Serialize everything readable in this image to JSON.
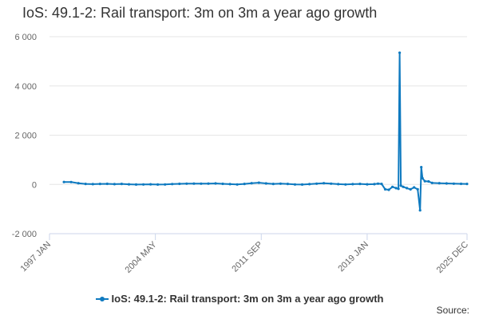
{
  "chart_data": {
    "type": "line",
    "title": "IoS: 49.1-2: Rail transport: 3m on 3m a year ago growth",
    "xlabel": "",
    "ylabel": "",
    "ylim": [
      -2000,
      6000
    ],
    "yticks": [
      {
        "value": -2000,
        "label": "-2 000"
      },
      {
        "value": 0,
        "label": "0"
      },
      {
        "value": 2000,
        "label": "2 000"
      },
      {
        "value": 4000,
        "label": "4 000"
      },
      {
        "value": 6000,
        "label": "6 000"
      }
    ],
    "xrange": [
      "1997-01",
      "2025-12"
    ],
    "xticks": [
      {
        "value": "1997-01",
        "label": "1997 JAN"
      },
      {
        "value": "2004-05",
        "label": "2004 MAY"
      },
      {
        "value": "2011-09",
        "label": "2011 SEP"
      },
      {
        "value": "2019-01",
        "label": "2019 JAN"
      },
      {
        "value": "2025-12",
        "label": "2025 DEC"
      }
    ],
    "grid": "horizontal",
    "legend_position": "bottom",
    "color": "#0f7ac0",
    "series": [
      {
        "name": "IoS: 49.1-2: Rail transport: 3m on 3m a year ago growth",
        "points": [
          [
            "1998-01",
            100
          ],
          [
            "1998-07",
            95
          ],
          [
            "1999-01",
            50
          ],
          [
            "1999-07",
            20
          ],
          [
            "2000-01",
            10
          ],
          [
            "2000-07",
            20
          ],
          [
            "2001-01",
            25
          ],
          [
            "2001-07",
            10
          ],
          [
            "2002-01",
            20
          ],
          [
            "2002-07",
            5
          ],
          [
            "2003-01",
            -5
          ],
          [
            "2003-07",
            0
          ],
          [
            "2004-01",
            5
          ],
          [
            "2004-07",
            -5
          ],
          [
            "2005-01",
            0
          ],
          [
            "2005-07",
            15
          ],
          [
            "2006-01",
            25
          ],
          [
            "2006-07",
            30
          ],
          [
            "2007-01",
            35
          ],
          [
            "2007-07",
            30
          ],
          [
            "2008-01",
            35
          ],
          [
            "2008-07",
            40
          ],
          [
            "2009-01",
            25
          ],
          [
            "2009-07",
            10
          ],
          [
            "2010-01",
            0
          ],
          [
            "2010-07",
            20
          ],
          [
            "2011-01",
            50
          ],
          [
            "2011-07",
            70
          ],
          [
            "2012-01",
            40
          ],
          [
            "2012-07",
            20
          ],
          [
            "2013-01",
            30
          ],
          [
            "2013-07",
            20
          ],
          [
            "2014-01",
            0
          ],
          [
            "2014-07",
            -5
          ],
          [
            "2015-01",
            10
          ],
          [
            "2015-07",
            30
          ],
          [
            "2016-01",
            50
          ],
          [
            "2016-07",
            30
          ],
          [
            "2017-01",
            10
          ],
          [
            "2017-07",
            0
          ],
          [
            "2018-01",
            10
          ],
          [
            "2018-07",
            20
          ],
          [
            "2019-01",
            5
          ],
          [
            "2019-07",
            10
          ],
          [
            "2019-10",
            30
          ],
          [
            "2020-01",
            20
          ],
          [
            "2020-04",
            -200
          ],
          [
            "2020-07",
            -220
          ],
          [
            "2020-10",
            -100
          ],
          [
            "2021-01",
            -150
          ],
          [
            "2021-03",
            -180
          ],
          [
            "2021-04",
            5350
          ],
          [
            "2021-05",
            -50
          ],
          [
            "2021-07",
            -100
          ],
          [
            "2021-10",
            -150
          ],
          [
            "2022-01",
            -200
          ],
          [
            "2022-04",
            -120
          ],
          [
            "2022-07",
            -200
          ],
          [
            "2022-09",
            -1050
          ],
          [
            "2022-10",
            700
          ],
          [
            "2022-11",
            250
          ],
          [
            "2023-01",
            130
          ],
          [
            "2023-04",
            120
          ],
          [
            "2023-07",
            60
          ],
          [
            "2024-01",
            50
          ],
          [
            "2024-07",
            40
          ],
          [
            "2025-01",
            30
          ],
          [
            "2025-07",
            25
          ],
          [
            "2025-12",
            20
          ]
        ]
      }
    ],
    "source_label": "Source:"
  }
}
